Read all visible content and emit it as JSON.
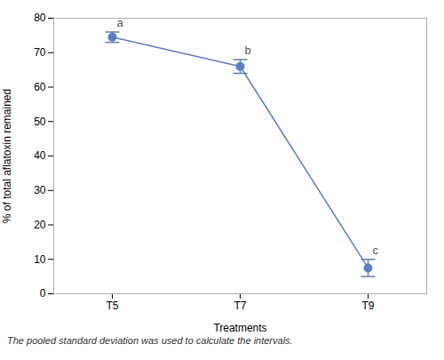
{
  "chart_data": {
    "type": "line",
    "categories": [
      "T5",
      "T7",
      "T9"
    ],
    "values": [
      74.5,
      66.0,
      7.5
    ],
    "errors": [
      1.5,
      2.0,
      2.5
    ],
    "point_labels": [
      "a",
      "b",
      "c"
    ],
    "color": "#5b82b8",
    "marker": "circle",
    "xlabel": "Treatments",
    "ylabel": "% of total aflatoxin remained",
    "ylim": [
      0,
      80
    ],
    "yticks": [
      0,
      10,
      20,
      30,
      40,
      50,
      60,
      70,
      80
    ],
    "grid": false,
    "caption": "The pooled standard deviation was used to calculate the intervals."
  }
}
